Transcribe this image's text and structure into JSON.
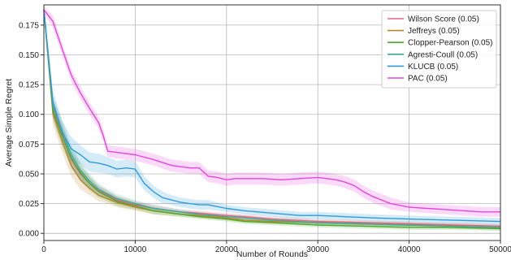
{
  "chart_data": {
    "type": "line",
    "title": "",
    "xlabel": "Number of Rounds",
    "ylabel": "Average Simple Regret",
    "xlim": [
      0,
      50000
    ],
    "ylim": [
      -0.006,
      0.192
    ],
    "xticks": [
      0,
      10000,
      20000,
      30000,
      40000,
      50000
    ],
    "xtick_labels": [
      "0",
      "10000",
      "20000",
      "30000",
      "40000",
      "50000"
    ],
    "yticks": [
      0.0,
      0.025,
      0.05,
      0.075,
      0.1,
      0.125,
      0.15,
      0.175
    ],
    "ytick_labels": [
      "0.000",
      "0.025",
      "0.050",
      "0.075",
      "0.100",
      "0.125",
      "0.150",
      "0.175"
    ],
    "grid": true,
    "legend_position": "top-right",
    "series": [
      {
        "name": "Wilson Score (0.05)",
        "color": "#e8637e",
        "x": [
          0,
          1000,
          2000,
          3000,
          4000,
          5000,
          6000,
          7000,
          8000,
          10000,
          12000,
          15000,
          17000,
          20000,
          22000,
          25000,
          30000,
          35000,
          40000,
          45000,
          50000
        ],
        "y": [
          0.188,
          0.105,
          0.083,
          0.062,
          0.05,
          0.042,
          0.036,
          0.032,
          0.028,
          0.024,
          0.021,
          0.018,
          0.017,
          0.015,
          0.014,
          0.012,
          0.01,
          0.009,
          0.008,
          0.007,
          0.006
        ],
        "band": [
          0.004,
          0.008,
          0.008,
          0.007,
          0.006,
          0.005,
          0.004,
          0.004,
          0.003,
          0.003,
          0.003,
          0.002,
          0.002,
          0.002,
          0.002,
          0.002,
          0.002,
          0.002,
          0.002,
          0.002,
          0.002
        ]
      },
      {
        "name": "Jeffreys (0.05)",
        "color": "#b8862a",
        "x": [
          0,
          1000,
          2000,
          3000,
          4000,
          5000,
          6000,
          7000,
          8000,
          10000,
          12000,
          15000,
          17000,
          20000,
          22000,
          25000,
          30000,
          35000,
          40000,
          45000,
          50000
        ],
        "y": [
          0.188,
          0.1,
          0.078,
          0.057,
          0.045,
          0.038,
          0.032,
          0.029,
          0.026,
          0.022,
          0.019,
          0.016,
          0.015,
          0.013,
          0.011,
          0.01,
          0.009,
          0.008,
          0.007,
          0.006,
          0.005
        ],
        "band": [
          0.004,
          0.009,
          0.01,
          0.009,
          0.008,
          0.006,
          0.005,
          0.004,
          0.004,
          0.003,
          0.003,
          0.002,
          0.002,
          0.002,
          0.002,
          0.002,
          0.002,
          0.002,
          0.002,
          0.002,
          0.002
        ]
      },
      {
        "name": "Clopper-Pearson (0.05)",
        "color": "#4bab2a",
        "x": [
          0,
          1000,
          2000,
          3000,
          4000,
          5000,
          6000,
          7000,
          8000,
          10000,
          12000,
          15000,
          17000,
          20000,
          22000,
          25000,
          30000,
          35000,
          40000,
          45000,
          50000
        ],
        "y": [
          0.188,
          0.103,
          0.082,
          0.063,
          0.051,
          0.042,
          0.035,
          0.031,
          0.027,
          0.023,
          0.019,
          0.016,
          0.014,
          0.012,
          0.01,
          0.009,
          0.007,
          0.006,
          0.005,
          0.005,
          0.004
        ],
        "band": [
          0.004,
          0.008,
          0.009,
          0.008,
          0.007,
          0.006,
          0.005,
          0.004,
          0.004,
          0.003,
          0.003,
          0.002,
          0.002,
          0.002,
          0.002,
          0.002,
          0.002,
          0.002,
          0.002,
          0.002,
          0.002
        ]
      },
      {
        "name": "Agresti-Coull (0.05)",
        "color": "#3aab9c",
        "x": [
          0,
          1000,
          2000,
          3000,
          4000,
          5000,
          6000,
          7000,
          8000,
          10000,
          12000,
          15000,
          17000,
          20000,
          22000,
          25000,
          30000,
          35000,
          40000,
          45000,
          50000
        ],
        "y": [
          0.188,
          0.107,
          0.086,
          0.066,
          0.053,
          0.044,
          0.037,
          0.033,
          0.029,
          0.025,
          0.021,
          0.018,
          0.016,
          0.014,
          0.013,
          0.011,
          0.009,
          0.008,
          0.007,
          0.006,
          0.005
        ],
        "band": [
          0.004,
          0.008,
          0.009,
          0.008,
          0.007,
          0.006,
          0.005,
          0.004,
          0.004,
          0.003,
          0.003,
          0.002,
          0.002,
          0.002,
          0.002,
          0.002,
          0.002,
          0.002,
          0.002,
          0.002,
          0.002
        ]
      },
      {
        "name": "KLUCB (0.05)",
        "color": "#2f9bd8",
        "x": [
          0,
          1000,
          2000,
          3000,
          4000,
          5000,
          6000,
          7000,
          8000,
          9000,
          10000,
          11000,
          12000,
          13000,
          14000,
          15000,
          16000,
          17000,
          18000,
          20000,
          22000,
          25000,
          28000,
          30000,
          33000,
          36000,
          40000,
          45000,
          50000
        ],
        "y": [
          0.188,
          0.11,
          0.085,
          0.071,
          0.066,
          0.06,
          0.059,
          0.057,
          0.054,
          0.055,
          0.054,
          0.042,
          0.035,
          0.03,
          0.028,
          0.026,
          0.025,
          0.024,
          0.024,
          0.021,
          0.019,
          0.017,
          0.015,
          0.015,
          0.014,
          0.013,
          0.012,
          0.011,
          0.01
        ],
        "band": [
          0.004,
          0.01,
          0.01,
          0.01,
          0.008,
          0.008,
          0.008,
          0.007,
          0.007,
          0.007,
          0.007,
          0.006,
          0.005,
          0.005,
          0.004,
          0.004,
          0.004,
          0.004,
          0.004,
          0.003,
          0.003,
          0.003,
          0.003,
          0.003,
          0.003,
          0.003,
          0.003,
          0.003,
          0.003
        ]
      },
      {
        "name": "PAC (0.05)",
        "color": "#e545dc",
        "x": [
          0,
          1000,
          2000,
          3000,
          4000,
          5000,
          6000,
          6500,
          7000,
          8000,
          10000,
          12000,
          14000,
          15000,
          16000,
          17000,
          18000,
          19000,
          20000,
          21000,
          22000,
          24000,
          26000,
          28000,
          30000,
          31000,
          32000,
          33000,
          34000,
          35000,
          36000,
          38000,
          40000,
          42000,
          44000,
          46000,
          48000,
          50000
        ],
        "y": [
          0.188,
          0.178,
          0.155,
          0.133,
          0.118,
          0.105,
          0.093,
          0.082,
          0.069,
          0.068,
          0.066,
          0.062,
          0.057,
          0.056,
          0.055,
          0.055,
          0.048,
          0.047,
          0.045,
          0.046,
          0.046,
          0.046,
          0.045,
          0.046,
          0.047,
          0.046,
          0.045,
          0.043,
          0.04,
          0.035,
          0.031,
          0.025,
          0.022,
          0.021,
          0.02,
          0.019,
          0.018,
          0.018
        ],
        "band": [
          0.003,
          0.005,
          0.005,
          0.005,
          0.005,
          0.005,
          0.005,
          0.005,
          0.005,
          0.005,
          0.005,
          0.005,
          0.005,
          0.005,
          0.005,
          0.005,
          0.005,
          0.005,
          0.005,
          0.005,
          0.005,
          0.005,
          0.005,
          0.005,
          0.005,
          0.005,
          0.005,
          0.005,
          0.005,
          0.005,
          0.005,
          0.005,
          0.004,
          0.004,
          0.004,
          0.004,
          0.004,
          0.004
        ]
      }
    ]
  }
}
